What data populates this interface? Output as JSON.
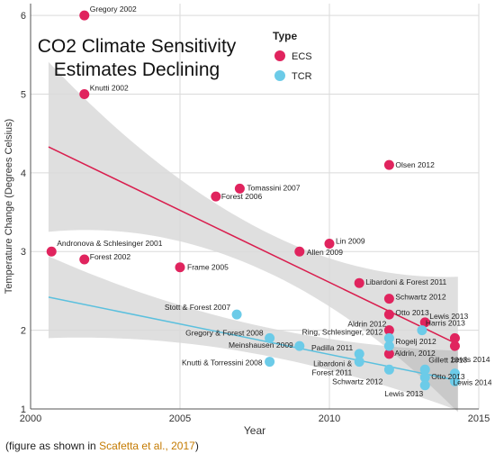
{
  "caption": {
    "prefix": "(figure as shown in ",
    "highlight": "Scafetta et al., 2017",
    "suffix": ")"
  },
  "colors": {
    "ecs": "#e0245e",
    "tcr": "#6ccbe8",
    "ecs_line": "#d91e4e",
    "tcr_line": "#5bc0de",
    "band": "#9a9a9a",
    "grid": "#dadada"
  },
  "chart_data": {
    "type": "scatter",
    "title": "CO2 Climate Sensitivity Estimates Declining",
    "title_lines": [
      "CO2 Climate Sensitivity",
      "Estimates Declining"
    ],
    "xlabel": "Year",
    "ylabel": "Temperature Change (Degrees Celsius)",
    "xlim": [
      2000,
      2015
    ],
    "ylim": [
      1,
      6.15
    ],
    "xticks": [
      2000,
      2005,
      2010,
      2015
    ],
    "yticks": [
      1,
      2,
      3,
      4,
      5,
      6
    ],
    "grid": true,
    "legend": {
      "title": "Type",
      "position": "top-right",
      "entries": [
        "ECS",
        "TCR"
      ]
    },
    "trend_lines": [
      {
        "series": "ECS",
        "x": [
          2000.6,
          2014.3
        ],
        "y": [
          4.33,
          1.82
        ]
      },
      {
        "series": "TCR",
        "x": [
          2000.6,
          2014.3
        ],
        "y": [
          2.42,
          1.36
        ]
      }
    ],
    "series": [
      {
        "name": "ECS",
        "points": [
          {
            "x": 2001.8,
            "y": 6.0,
            "label": "Gregory 2002"
          },
          {
            "x": 2001.8,
            "y": 5.0,
            "label": "Knutti 2002"
          },
          {
            "x": 2000.7,
            "y": 3.0,
            "label": "Andronova & Schlesinger 2001"
          },
          {
            "x": 2001.8,
            "y": 2.9,
            "label": "Forest 2002"
          },
          {
            "x": 2005.0,
            "y": 2.8,
            "label": "Frame 2005"
          },
          {
            "x": 2006.2,
            "y": 3.7,
            "label": "Forest 2006"
          },
          {
            "x": 2007.0,
            "y": 3.8,
            "label": "Tomassini 2007"
          },
          {
            "x": 2009.0,
            "y": 3.0,
            "label": "Allen 2009"
          },
          {
            "x": 2010.0,
            "y": 3.1,
            "label": "Lin 2009"
          },
          {
            "x": 2011.0,
            "y": 2.6,
            "label": "Libardoni & Forest 2011"
          },
          {
            "x": 2012.0,
            "y": 2.4,
            "label": "Schwartz 2012"
          },
          {
            "x": 2012.0,
            "y": 2.2,
            "label": "Otto 2013"
          },
          {
            "x": 2012.0,
            "y": 2.0,
            "label": "Aldrin 2012"
          },
          {
            "x": 2012.0,
            "y": 1.7,
            "label": "Aldrin, 2012"
          },
          {
            "x": 2012.0,
            "y": 4.1,
            "label": "Olsen 2012"
          },
          {
            "x": 2013.2,
            "y": 2.1,
            "label": "Lewis 2013"
          },
          {
            "x": 2014.2,
            "y": 1.8,
            "label": "Lewis 2014"
          },
          {
            "x": 2014.2,
            "y": 1.9,
            "label": ""
          }
        ]
      },
      {
        "name": "TCR",
        "points": [
          {
            "x": 2006.9,
            "y": 2.2,
            "label": "Stott & Forest 2007"
          },
          {
            "x": 2008.0,
            "y": 1.9,
            "label": "Gregory & Forest 2008"
          },
          {
            "x": 2009.0,
            "y": 1.8,
            "label": "Meinshausen 2009"
          },
          {
            "x": 2008.0,
            "y": 1.6,
            "label": "Knutti & Torressini 2008"
          },
          {
            "x": 2011.0,
            "y": 1.7,
            "label": "Padilla 2011"
          },
          {
            "x": 2011.0,
            "y": 1.6,
            "label": "Libardoni & Forest 2011"
          },
          {
            "x": 2012.0,
            "y": 1.8,
            "label": "Rogelj 2012"
          },
          {
            "x": 2012.0,
            "y": 1.9,
            "label": "Ring, Schlesinger, 2012"
          },
          {
            "x": 2012.0,
            "y": 1.5,
            "label": "Schwartz 2012"
          },
          {
            "x": 2013.1,
            "y": 2.0,
            "label": "Harris 2013"
          },
          {
            "x": 2013.2,
            "y": 1.5,
            "label": "Gillett 2013"
          },
          {
            "x": 2013.2,
            "y": 1.4,
            "label": "Otto 2013"
          },
          {
            "x": 2013.2,
            "y": 1.3,
            "label": "Lewis 2013"
          },
          {
            "x": 2014.2,
            "y": 1.45,
            "label": "Lewis 2014"
          },
          {
            "x": 2014.2,
            "y": 1.35,
            "label": ""
          }
        ]
      }
    ]
  }
}
